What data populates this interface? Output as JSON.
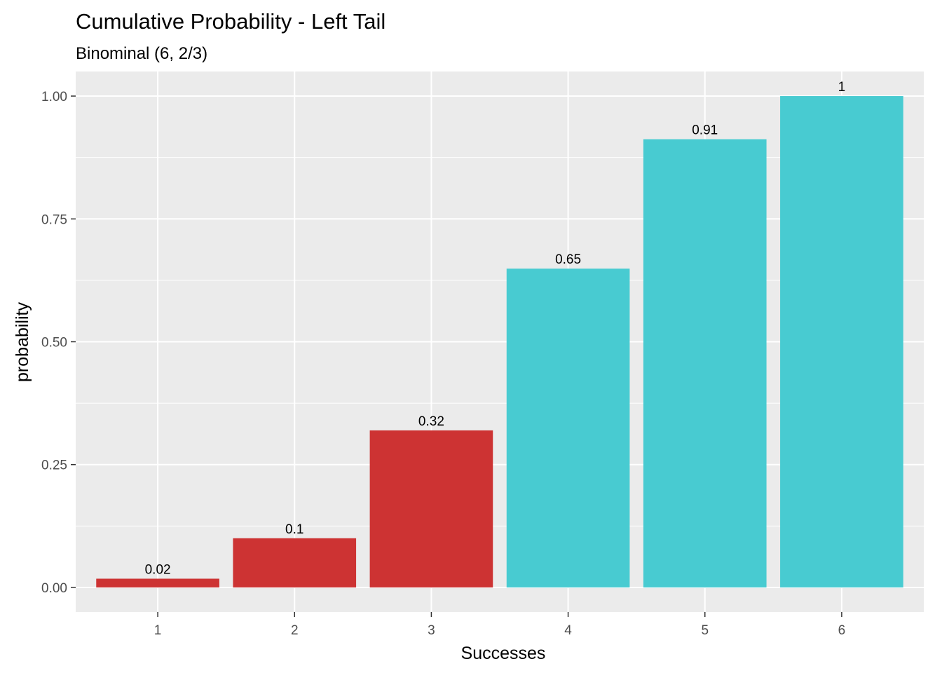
{
  "chart_data": {
    "type": "bar",
    "title": "Cumulative Probability - Left Tail",
    "subtitle": "Binominal (6, 2/3)",
    "xlabel": "Successes",
    "ylabel": "probability",
    "categories": [
      "1",
      "2",
      "3",
      "4",
      "5",
      "6"
    ],
    "values": [
      0.0178,
      0.1001,
      0.3196,
      0.6488,
      0.9122,
      1.0
    ],
    "data_labels": [
      "0.02",
      "0.1",
      "0.32",
      "0.65",
      "0.91",
      "1"
    ],
    "highlight": [
      true,
      true,
      true,
      false,
      false,
      false
    ],
    "colors": {
      "highlight": "#CD3333",
      "normal": "#48CBD1",
      "panel": "#EBEBEB",
      "grid": "#FFFFFF"
    },
    "ylim": [
      -0.05,
      1.05
    ],
    "yticks": [
      0.0,
      0.25,
      0.5,
      0.75,
      1.0
    ],
    "ytick_labels": [
      "0.00",
      "0.25",
      "0.50",
      "0.75",
      "1.00"
    ],
    "grid": true,
    "legend": "none"
  }
}
